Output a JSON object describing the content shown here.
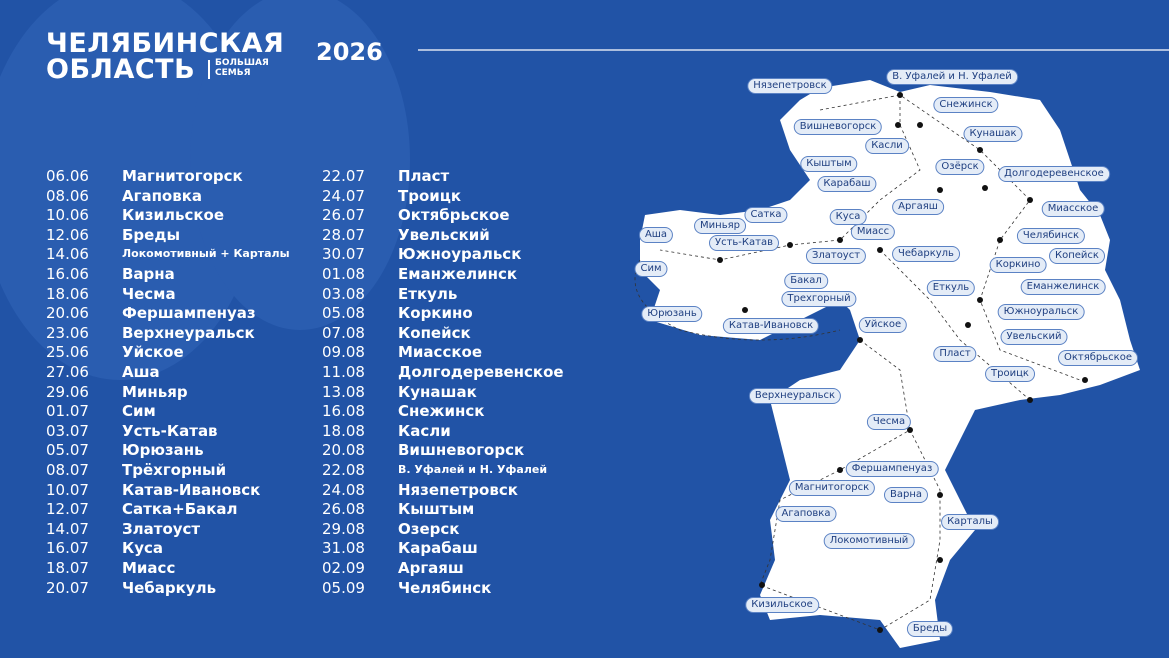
{
  "header": {
    "title_line1": "ЧЕЛЯБИНСКАЯ",
    "title_line2": "ОБЛАСТЬ",
    "subtitle_line1": "БОЛЬШАЯ",
    "subtitle_line2": "СЕМЬЯ",
    "year": "2026"
  },
  "schedule": {
    "columns": [
      [
        {
          "date": "06.06",
          "city": "Магнитогорск"
        },
        {
          "date": "08.06",
          "city": "Агаповка"
        },
        {
          "date": "10.06",
          "city": "Кизильское"
        },
        {
          "date": "12.06",
          "city": "Бреды"
        },
        {
          "date": "14.06",
          "city": "Локомотивный + Карталы"
        },
        {
          "date": "16.06",
          "city": "Варна"
        },
        {
          "date": "18.06",
          "city": "Чесма"
        },
        {
          "date": "20.06",
          "city": "Фершампенуаз"
        },
        {
          "date": "23.06",
          "city": "Верхнеуральск"
        },
        {
          "date": "25.06",
          "city": "Уйское"
        },
        {
          "date": "27.06",
          "city": "Аша"
        },
        {
          "date": "29.06",
          "city": "Миньяр"
        },
        {
          "date": "01.07",
          "city": "Сим"
        },
        {
          "date": "03.07",
          "city": "Усть-Катав"
        },
        {
          "date": "05.07",
          "city": "Юрюзань"
        },
        {
          "date": "08.07",
          "city": "Трёхгорный"
        },
        {
          "date": "10.07",
          "city": "Катав-Ивановск"
        },
        {
          "date": "12.07",
          "city": "Сатка+Бакал"
        },
        {
          "date": "14.07",
          "city": "Златоуст"
        },
        {
          "date": "16.07",
          "city": "Куса"
        },
        {
          "date": "18.07",
          "city": "Миасс"
        },
        {
          "date": "20.07",
          "city": "Чебаркуль"
        }
      ],
      [
        {
          "date": "22.07",
          "city": "Пласт"
        },
        {
          "date": "24.07",
          "city": "Троицк"
        },
        {
          "date": "26.07",
          "city": "Октябрьское"
        },
        {
          "date": "28.07",
          "city": "Увельский"
        },
        {
          "date": "30.07",
          "city": "Южноуральск"
        },
        {
          "date": "01.08",
          "city": "Еманжелинск"
        },
        {
          "date": "03.08",
          "city": "Еткуль"
        },
        {
          "date": "05.08",
          "city": "Коркино"
        },
        {
          "date": "07.08",
          "city": "Копейск"
        },
        {
          "date": "09.08",
          "city": "Миасское"
        },
        {
          "date": "11.08",
          "city": "Долгодеревенское"
        },
        {
          "date": "13.08",
          "city": "Кунашак"
        },
        {
          "date": "16.08",
          "city": "Снежинск"
        },
        {
          "date": "18.08",
          "city": "Касли"
        },
        {
          "date": "20.08",
          "city": "Вишневогорск"
        },
        {
          "date": "22.08",
          "city": "В. Уфалей и Н. Уфалей"
        },
        {
          "date": "24.08",
          "city": "Нязепетровск"
        },
        {
          "date": "26.08",
          "city": "Кыштым"
        },
        {
          "date": "29.08",
          "city": "Озерск"
        },
        {
          "date": "31.08",
          "city": "Карабаш"
        },
        {
          "date": "02.09",
          "city": "Аргаяш"
        },
        {
          "date": "05.09",
          "city": "Челябинск"
        }
      ]
    ]
  },
  "map": {
    "labels": [
      "Нязепетровск",
      "В. Уфалей и Н. Уфалей",
      "Снежинск",
      "Вишневогорск",
      "Кунашак",
      "Касли",
      "Кыштым",
      "Озёрск",
      "Долгодеревенское",
      "Карабаш",
      "Аргаяш",
      "Миасское",
      "Сатка",
      "Куса",
      "Миньяр",
      "Аша",
      "Миасс",
      "Челябинск",
      "Усть-Катав",
      "Златоуст",
      "Чебаркуль",
      "Копейск",
      "Сим",
      "Бакал",
      "Коркино",
      "Еткуль",
      "Еманжелинск",
      "Трехгорный",
      "Южноуральск",
      "Юрюзань",
      "Катав-Ивановск",
      "Уйское",
      "Увельский",
      "Октябрьское",
      "Пласт",
      "Троицк",
      "Верхнеуральск",
      "Чесма",
      "Фершампенуаз",
      "Магнитогорск",
      "Варна",
      "Агаповка",
      "Карталы",
      "Локомотивный",
      "Кизильское",
      "Бреды"
    ]
  }
}
